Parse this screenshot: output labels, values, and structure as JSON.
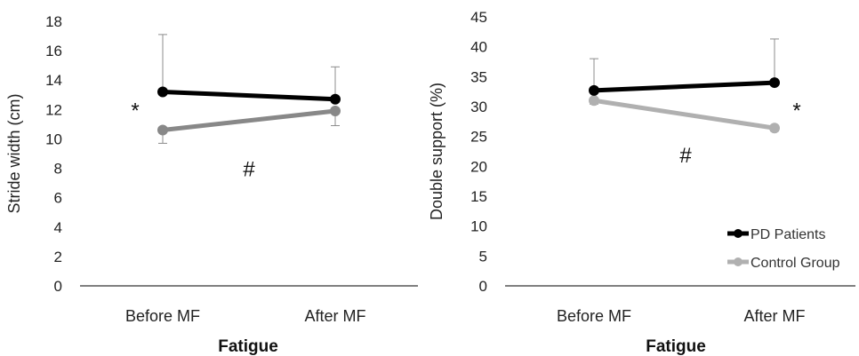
{
  "chart_data": [
    {
      "type": "line",
      "title": "",
      "xlabel": "Fatigue",
      "ylabel": "Stride width (cm)",
      "categories": [
        "Before MF",
        "After MF"
      ],
      "ylim": [
        0,
        18
      ],
      "yticks": [
        "0",
        "2",
        "4",
        "6",
        "8",
        "10",
        "12",
        "14",
        "16",
        "18"
      ],
      "series": [
        {
          "values": [
            13.2,
            12.7
          ],
          "error_up": [
            3.9,
            2.2
          ],
          "error_down": [
            0,
            0
          ],
          "color": "#000000"
        },
        {
          "values": [
            10.6,
            11.9
          ],
          "error_up": [
            0,
            0
          ],
          "error_down": [
            0.9,
            1.0
          ],
          "color": "#888888"
        }
      ],
      "annotations": [
        {
          "text": "*",
          "x_pos": "left of Before MF",
          "y": 12.0
        },
        {
          "text": "#",
          "x_pos": "between categories",
          "y": 8.0
        }
      ]
    },
    {
      "type": "line",
      "title": "",
      "xlabel": "Fatigue",
      "ylabel": "Double support (%)",
      "categories": [
        "Before MF",
        "After MF"
      ],
      "ylim": [
        0,
        45
      ],
      "yticks": [
        "0",
        "5",
        "10",
        "15",
        "20",
        "25",
        "30",
        "35",
        "40",
        "45"
      ],
      "legend_placement": "bottom-right",
      "series": [
        {
          "name": "PD Patients",
          "values": [
            32.7,
            34.0
          ],
          "error_up": [
            5.3,
            7.3
          ],
          "error_down": [
            0,
            0
          ],
          "color": "#000000"
        },
        {
          "name": "Control Group",
          "values": [
            31.0,
            26.4
          ],
          "error_up": [
            0,
            0
          ],
          "error_down": [
            0.6,
            0.5
          ],
          "color": "#b0b0b0"
        }
      ],
      "annotations": [
        {
          "text": "*",
          "x_pos": "right of After MF",
          "y": 29.5
        },
        {
          "text": "#",
          "x_pos": "between categories",
          "y": 22.0
        }
      ]
    }
  ]
}
